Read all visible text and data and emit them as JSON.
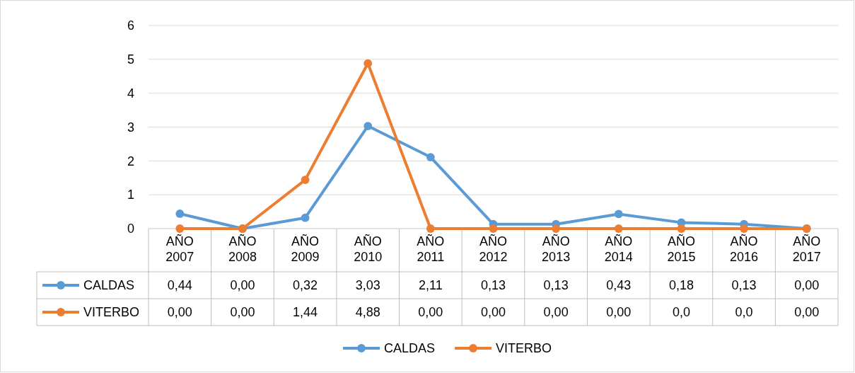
{
  "chart_data": {
    "type": "line",
    "categories": [
      "AÑO 2007",
      "AÑO 2008",
      "AÑO 2009",
      "AÑO 2010",
      "AÑO 2011",
      "AÑO 2012",
      "AÑO 2013",
      "AÑO 2014",
      "AÑO 2015",
      "AÑO 2016",
      "AÑO 2017"
    ],
    "series": [
      {
        "name": "CALDAS",
        "color": "#5b9bd5",
        "values": [
          0.44,
          0,
          0.32,
          3.03,
          2.11,
          0.13,
          0.13,
          0.43,
          0.18,
          0.13,
          0
        ],
        "value_labels": [
          "0,44",
          "0,00",
          "0,32",
          "3,03",
          "2,11",
          "0,13",
          "0,13",
          "0,43",
          "0,18",
          "0,13",
          "0,00"
        ]
      },
      {
        "name": "VITERBO",
        "color": "#ed7d31",
        "values": [
          0,
          0,
          1.44,
          4.88,
          0,
          0,
          0,
          0,
          0,
          0,
          0
        ],
        "value_labels": [
          "0,00",
          "0,00",
          "1,44",
          "4,88",
          "0,00",
          "0,00",
          "0,00",
          "0,00",
          "0,0",
          "0,0",
          "0,00"
        ]
      }
    ],
    "ylim": [
      0,
      6
    ],
    "yticks": [
      0,
      1,
      2,
      3,
      4,
      5,
      6
    ],
    "grid": "y",
    "marker": "circle",
    "line_style": "solid",
    "legend": "bottom"
  }
}
